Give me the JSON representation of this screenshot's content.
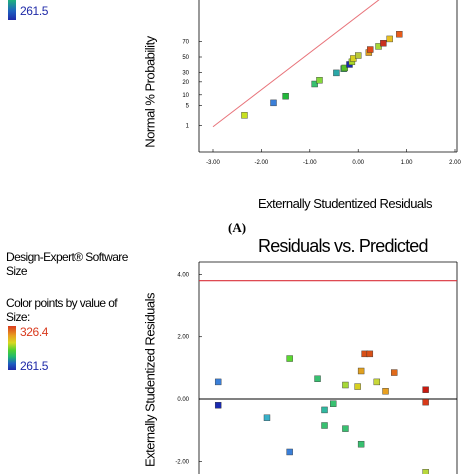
{
  "panel_a": {
    "size_color_max": "",
    "size_color_min": "261.5",
    "panel_label": "(A)"
  },
  "panel_b": {
    "software": "Design-Expert® Software",
    "response": "Size",
    "color_legend_title_1": "Color points by value of",
    "color_legend_title_2": "Size:",
    "size_color_max": "326.4",
    "size_color_min": "261.5"
  },
  "colors": {
    "max_red": "#d93a1e",
    "min_blue": "#1f2aa8",
    "reference_line": "#e8737a",
    "limit_line": "#d9303a",
    "zero_line": "#000000"
  },
  "chart_data": [
    {
      "type": "scatter",
      "title": "",
      "xlabel": "Externally Studentized Residuals",
      "ylabel": "Normal % Probability",
      "xlim": [
        -3.0,
        2.0
      ],
      "x_ticks": [
        "-3.00",
        "-2.00",
        "-1.00",
        "0.00",
        "1.00",
        "2.00"
      ],
      "y_ticks": [
        "1",
        "5",
        "10",
        "20",
        "30",
        "50",
        "70"
      ],
      "reference_line": {
        "from": [
          -3.0,
          0.9
        ],
        "to": [
          0.9,
          99
        ]
      },
      "points": [
        {
          "x": -2.35,
          "y": 2.4,
          "color": "#c8e020"
        },
        {
          "x": -1.75,
          "y": 6,
          "color": "#3a7fd8"
        },
        {
          "x": -1.5,
          "y": 9.2,
          "color": "#22b83a"
        },
        {
          "x": -0.9,
          "y": 18,
          "color": "#38c070"
        },
        {
          "x": -0.8,
          "y": 21.5,
          "color": "#84d83a"
        },
        {
          "x": -0.45,
          "y": 29.5,
          "color": "#2aa8a8"
        },
        {
          "x": -0.3,
          "y": 34.5,
          "color": "#38c070"
        },
        {
          "x": -0.28,
          "y": 35.5,
          "color": "#5ac028"
        },
        {
          "x": -0.18,
          "y": 40,
          "color": "#1a2ab0"
        },
        {
          "x": -0.13,
          "y": 43.5,
          "color": "#a6d82a"
        },
        {
          "x": -0.1,
          "y": 48,
          "color": "#d8d020"
        },
        {
          "x": 0.0,
          "y": 52,
          "color": "#b8c83a"
        },
        {
          "x": 0.22,
          "y": 56,
          "color": "#e0a020"
        },
        {
          "x": 0.25,
          "y": 60,
          "color": "#e04a1a"
        },
        {
          "x": 0.42,
          "y": 64,
          "color": "#a6d838"
        },
        {
          "x": 0.52,
          "y": 68,
          "color": "#c83020"
        },
        {
          "x": 0.65,
          "y": 73,
          "color": "#e8c020"
        },
        {
          "x": 0.85,
          "y": 78,
          "color": "#e85a1a"
        }
      ]
    },
    {
      "type": "scatter",
      "title": "Residuals vs. Predicted",
      "xlabel": "",
      "ylabel": "Externally Studentized Residuals",
      "ylim": [
        -2.6,
        4.4
      ],
      "y_ticks": [
        "4.00",
        "2.00",
        "0.00",
        "-2.00"
      ],
      "limit_line_y": 3.8,
      "zero_line_y": 0.0,
      "points": [
        {
          "x": 261.5,
          "y": 0.55,
          "color": "#3a7fd8"
        },
        {
          "x": 261.5,
          "y": -0.2,
          "color": "#1a2ab0"
        },
        {
          "x": 275.5,
          "y": -0.6,
          "color": "#3ab0c8"
        },
        {
          "x": 282,
          "y": 1.3,
          "color": "#5ad830"
        },
        {
          "x": 282,
          "y": -1.7,
          "color": "#3a7fd8"
        },
        {
          "x": 290,
          "y": 0.65,
          "color": "#38c070"
        },
        {
          "x": 292,
          "y": -0.35,
          "color": "#30b8a0"
        },
        {
          "x": 292,
          "y": -0.85,
          "color": "#38c070"
        },
        {
          "x": 294.5,
          "y": -0.15,
          "color": "#38c070"
        },
        {
          "x": 298,
          "y": 0.45,
          "color": "#a6d838"
        },
        {
          "x": 298,
          "y": -0.95,
          "color": "#38c070"
        },
        {
          "x": 301.5,
          "y": 0.4,
          "color": "#d8d020"
        },
        {
          "x": 302.5,
          "y": 0.9,
          "color": "#e0a020"
        },
        {
          "x": 302.5,
          "y": -1.45,
          "color": "#38c070"
        },
        {
          "x": 303.5,
          "y": 1.45,
          "color": "#d85018"
        },
        {
          "x": 305,
          "y": 1.45,
          "color": "#d85018"
        },
        {
          "x": 307,
          "y": 0.55,
          "color": "#c8d838"
        },
        {
          "x": 309.5,
          "y": 0.25,
          "color": "#e8a020"
        },
        {
          "x": 312,
          "y": 0.85,
          "color": "#e06a1a"
        },
        {
          "x": 321,
          "y": 0.3,
          "color": "#c81a10"
        },
        {
          "x": 321,
          "y": -0.1,
          "color": "#d83a1a"
        },
        {
          "x": 321,
          "y": -2.35,
          "color": "#b8d83a"
        }
      ]
    }
  ]
}
